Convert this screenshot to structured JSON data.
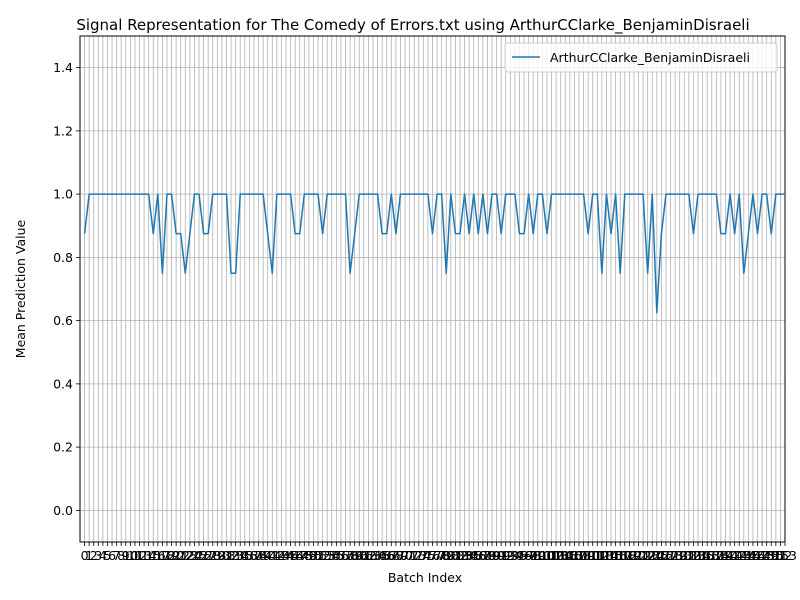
{
  "chart_data": {
    "type": "line",
    "title": "Signal Representation for The Comedy of Errors.txt using ArthurCClarke_BenjaminDisraeli",
    "xlabel": "Batch Index",
    "ylabel": "Mean Prediction Value",
    "ylim": [
      -0.1,
      1.5
    ],
    "xlim": [
      -1,
      153
    ],
    "yticks": [
      "0.0",
      "0.2",
      "0.4",
      "0.6",
      "0.8",
      "1.0",
      "1.2",
      "1.4"
    ],
    "xtick_labels": [
      "0",
      "1",
      "2",
      "3",
      "4",
      "5",
      "6",
      "7",
      "8",
      "9",
      "10",
      "11",
      "12",
      "13",
      "14",
      "15",
      "16",
      "17",
      "18",
      "19",
      "20",
      "21",
      "22",
      "23",
      "24",
      "25",
      "26",
      "27",
      "28",
      "29",
      "30",
      "31",
      "32",
      "33",
      "34",
      "35",
      "36",
      "37",
      "38",
      "39",
      "40",
      "41",
      "42",
      "43",
      "44",
      "45",
      "46",
      "47",
      "48",
      "49",
      "50",
      "51",
      "52",
      "53",
      "54",
      "55",
      "56",
      "57",
      "58",
      "59",
      "60",
      "61",
      "62",
      "63",
      "64",
      "65",
      "66",
      "67",
      "68",
      "69",
      "70",
      "71",
      "72",
      "73",
      "74",
      "75",
      "76",
      "77",
      "78",
      "79",
      "80",
      "81",
      "82",
      "83",
      "84",
      "85",
      "86",
      "87",
      "88",
      "89",
      "90",
      "91",
      "92",
      "93",
      "94",
      "95",
      "96",
      "97",
      "98",
      "99",
      "100",
      "101",
      "102",
      "103",
      "104",
      "105",
      "106",
      "107",
      "108",
      "109",
      "110",
      "111",
      "112",
      "113",
      "114",
      "115",
      "116",
      "117",
      "118",
      "119",
      "120",
      "121",
      "122",
      "123",
      "124",
      "125",
      "126",
      "127",
      "128",
      "129",
      "130",
      "131",
      "132",
      "133",
      "134",
      "135",
      "136",
      "137",
      "138",
      "139",
      "140",
      "141",
      "142",
      "143",
      "144",
      "145",
      "146",
      "147",
      "148",
      "149",
      "150",
      "151",
      "152",
      "153"
    ],
    "grid": true,
    "legend_position": "top-right",
    "series": [
      {
        "name": "ArthurCClarke_BenjaminDisraeli",
        "color": "#1f77b4",
        "values": [
          0.875,
          1,
          1,
          1,
          1,
          1,
          1,
          1,
          1,
          1,
          1,
          1,
          1,
          1,
          1,
          0.875,
          1,
          0.75,
          1,
          1,
          0.875,
          0.875,
          0.75,
          0.875,
          1,
          1,
          0.875,
          0.875,
          1,
          1,
          1,
          1,
          0.75,
          0.75,
          1,
          1,
          1,
          1,
          1,
          1,
          0.875,
          0.75,
          1,
          1,
          1,
          1,
          0.875,
          0.875,
          1,
          1,
          1,
          1,
          0.875,
          1,
          1,
          1,
          1,
          1,
          0.75,
          0.875,
          1,
          1,
          1,
          1,
          1,
          0.875,
          0.875,
          1,
          0.875,
          1,
          1,
          1,
          1,
          1,
          1,
          1,
          0.875,
          1,
          1,
          0.75,
          1,
          0.875,
          0.875,
          1,
          0.875,
          1,
          0.875,
          1,
          0.875,
          1,
          1,
          0.875,
          1,
          1,
          1,
          0.875,
          0.875,
          1,
          0.875,
          1,
          1,
          0.875,
          1,
          1,
          1,
          1,
          1,
          1,
          1,
          1,
          0.875,
          1,
          1,
          0.75,
          1,
          0.875,
          1,
          0.75,
          1,
          1,
          1,
          1,
          1,
          0.75,
          1,
          0.625,
          0.875,
          1,
          1,
          1,
          1,
          1,
          1,
          0.875,
          1,
          1,
          1,
          1,
          1,
          0.875,
          0.875,
          1,
          0.875,
          1,
          0.75,
          0.875,
          1,
          0.875,
          1,
          1,
          0.875,
          1,
          1,
          1
        ]
      }
    ]
  }
}
